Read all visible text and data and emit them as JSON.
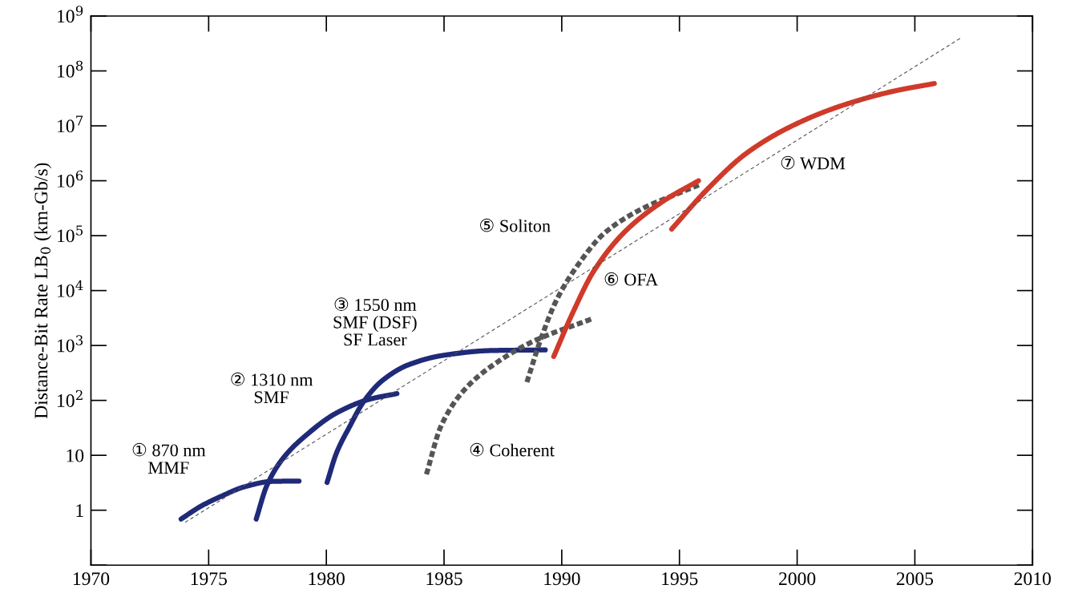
{
  "chart_data": {
    "type": "line",
    "ylabel": "Distance-Bit Rate LB$_{0}$ (km-Gb/s)",
    "log": "y",
    "xlim": [
      1970,
      2010
    ],
    "xticks": [
      1970,
      1975,
      1980,
      1985,
      1990,
      1995,
      2000,
      2005,
      2010
    ],
    "ylim": [
      0.1,
      1000000000
    ],
    "yticks": [
      {
        "value": 0.1,
        "label": null
      },
      1,
      10,
      {
        "value": 100,
        "label": "10$^{2}$"
      },
      {
        "value": 1000,
        "label": "10$^{3}$"
      },
      {
        "value": 10000,
        "label": "10$^{4}$"
      },
      {
        "value": 100000,
        "label": "10$^{5}$"
      },
      {
        "value": 1000000,
        "label": "10$^{6}$"
      },
      {
        "value": 10000000,
        "label": "10$^{7}$"
      },
      {
        "value": 100000000,
        "label": "10$^{8}$"
      },
      {
        "value": 1000000000,
        "label": "10$^{9}$"
      }
    ],
    "grid": false,
    "legend": false,
    "marker": "none",
    "series": [
      {
        "name": "① 870 nm\nMMF",
        "color": "#1f2a78",
        "line_style": "solid",
        "x": [
          1973.83,
          1974.62,
          1975.54,
          1976.56,
          1977.7,
          1978.84
        ],
        "values": [
          0.69,
          1.15,
          1.8,
          2.7,
          3.35,
          3.4
        ]
      },
      {
        "name": "② 1310 nm\nSMF",
        "color": "#1f2a78",
        "line_style": "solid",
        "x": [
          1977.02,
          1977.47,
          1978.15,
          1979.18,
          1980.43,
          1981.8,
          1983.0
        ],
        "values": [
          0.69,
          2.8,
          8.7,
          24,
          59,
          104,
          133
        ]
      },
      {
        "name": "③ 1550 nm\nSMF (DSF)\nSF Laser",
        "color": "#1f2a78",
        "line_style": "solid",
        "x": [
          1980.03,
          1980.43,
          1981.0,
          1981.57,
          1982.37,
          1983.5,
          1985.0,
          1987.03,
          1989.3
        ],
        "values": [
          3.2,
          11,
          34,
          93,
          228,
          447,
          665,
          810,
          830
        ]
      },
      {
        "name": "④ Coherent",
        "color": "#555555",
        "line_style": "dashed",
        "x": [
          1984.25,
          1984.87,
          1985.9,
          1987.27,
          1988.86,
          1991.25
        ],
        "values": [
          4.5,
          34,
          162,
          500,
          1230,
          3020
        ]
      },
      {
        "name": "⑤ Soliton",
        "color": "#555555",
        "line_style": "dashed",
        "x": [
          1988.52,
          1989.09,
          1989.77,
          1990.68,
          1991.82,
          1993.42,
          1995.0,
          1995.86
        ],
        "values": [
          215,
          1230,
          6600,
          29000,
          112000,
          310000,
          600000,
          850000
        ]
      },
      {
        "name": "⑥ OFA",
        "color": "#d03a2a",
        "line_style": "solid",
        "x": [
          1989.66,
          1990.45,
          1991.37,
          1992.74,
          1994.33,
          1995.81
        ],
        "values": [
          630,
          3800,
          23000,
          125000,
          430000,
          1000000
        ]
      },
      {
        "name": "⑦ WDM",
        "color": "#d03a2a",
        "line_style": "solid",
        "x": [
          1994.67,
          1996.15,
          1997.86,
          1999.79,
          2001.85,
          2004.12,
          2005.83
        ],
        "values": [
          132000,
          675000,
          3200000,
          10000000,
          23000000,
          43000000,
          59000000
        ]
      },
      {
        "color": "#555555",
        "line_style": "dotted",
        "x": [
          1974.0,
          2007.0
        ],
        "values": [
          0.6,
          410000000
        ]
      }
    ]
  }
}
